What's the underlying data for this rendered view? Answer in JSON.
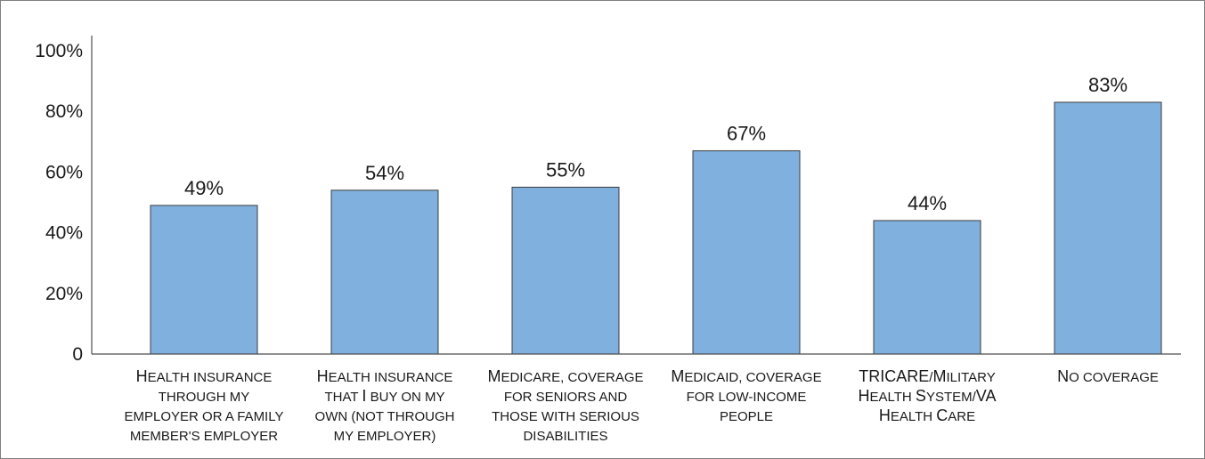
{
  "chart_data": {
    "type": "bar",
    "categories": [
      [
        "Health insurance",
        "through my",
        "employer or a family",
        "member's employer"
      ],
      [
        "Health insurance",
        "that I buy on my",
        "own (not through",
        "my employer)"
      ],
      [
        "Medicare, coverage",
        "for seniors and",
        "those with serious",
        "disabilities"
      ],
      [
        "Medicaid, coverage",
        "for low-income",
        "people"
      ],
      [
        "TRICARE/Military",
        "Health System/VA",
        "Health Care"
      ],
      [
        "No coverage"
      ]
    ],
    "values": [
      49,
      54,
      55,
      67,
      44,
      83
    ],
    "value_labels": [
      "49%",
      "54%",
      "55%",
      "67%",
      "44%",
      "83%"
    ],
    "y_ticks": [
      0,
      20,
      40,
      60,
      80,
      100
    ],
    "y_tick_labels": [
      "0",
      "20%",
      "40%",
      "60%",
      "80%",
      "100%"
    ],
    "ylim": [
      0,
      100
    ],
    "title": "",
    "xlabel": "",
    "ylabel": "",
    "grid": false,
    "legend": "none",
    "colors": {
      "bar_fill": "#80b0de",
      "bar_stroke": "#3d3d3d",
      "axis": "#4d4d4d"
    }
  }
}
